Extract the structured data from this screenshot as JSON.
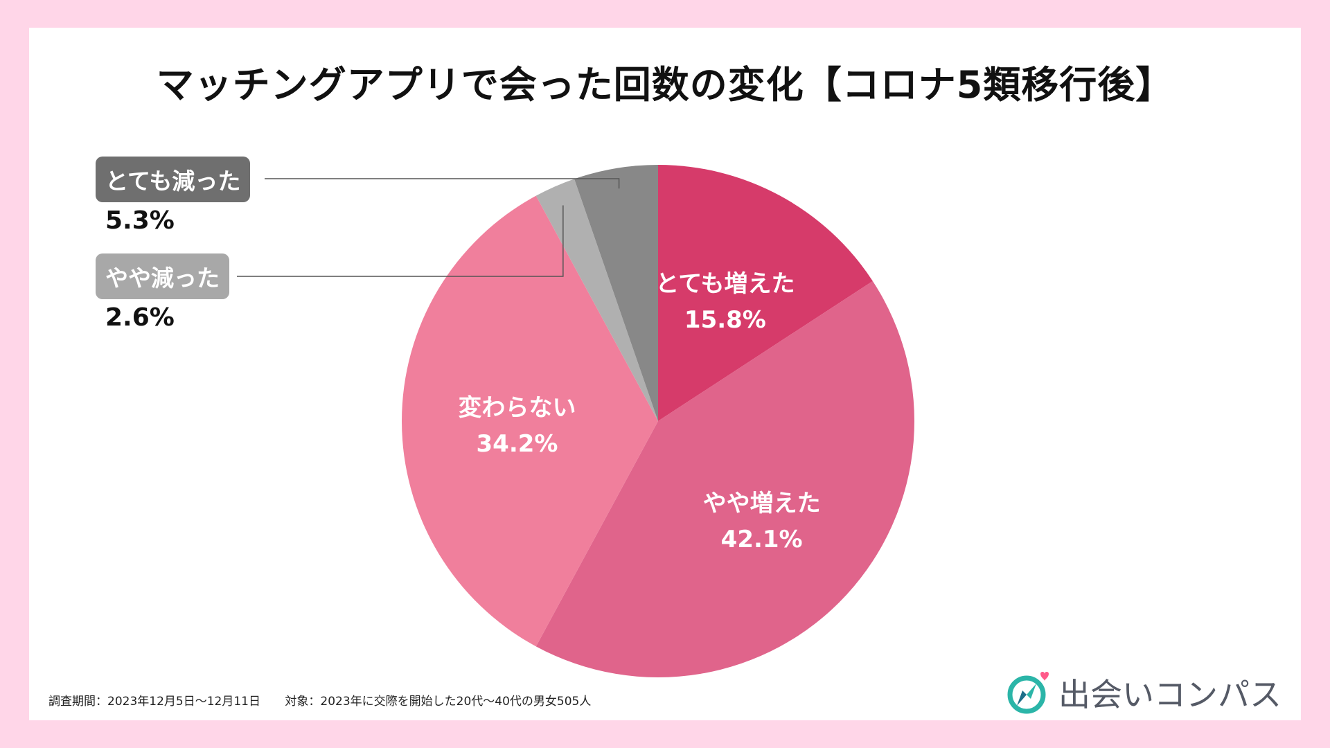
{
  "chart_data": {
    "type": "pie",
    "title": "マッチングアプリで会った回数の変化【コロナ5類移行後】",
    "slices": [
      {
        "label": "とても増えた",
        "value": 15.8,
        "value_label": "15.8%",
        "color": "#d63b6a",
        "label_style": "inside"
      },
      {
        "label": "やや増えた",
        "value": 42.1,
        "value_label": "42.1%",
        "color": "#e0648b",
        "label_style": "inside"
      },
      {
        "label": "変わらない",
        "value": 34.2,
        "value_label": "34.2%",
        "color": "#f07f9c",
        "label_style": "inside"
      },
      {
        "label": "やや減った",
        "value": 2.6,
        "value_label": "2.6%",
        "color": "#b0b0b0",
        "label_style": "callout"
      },
      {
        "label": "とても減った",
        "value": 5.3,
        "value_label": "5.3%",
        "color": "#888888",
        "label_style": "callout"
      }
    ],
    "start": "12 o'clock",
    "direction": "clockwise"
  },
  "footnote": {
    "period": "調査期間：2023年12月5日〜12月11日",
    "target": "対象：2023年に交際を開始した20代〜40代の男女505人"
  },
  "logo": {
    "text": "出会いコンパス",
    "icon": "compass-heart-icon",
    "accent": "#2bb5a8",
    "heart": "#ff5a8a"
  },
  "colors": {
    "background": "#ffd6e8",
    "card": "#ffffff"
  }
}
